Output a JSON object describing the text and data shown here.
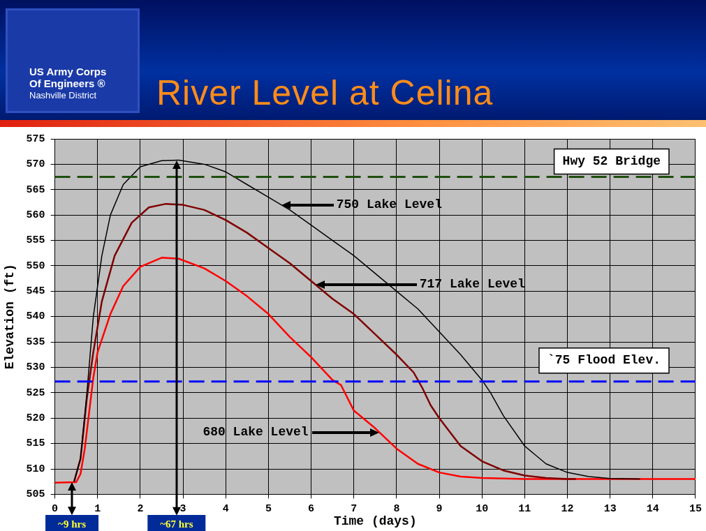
{
  "chart_data": {
    "type": "line",
    "title": "River Level at Celina",
    "xlabel": "Time (days)",
    "ylabel": "Elevation (ft)",
    "xlim": [
      0,
      15
    ],
    "xticks": [
      0,
      1,
      2,
      3,
      4,
      5,
      6,
      7,
      8,
      9,
      10,
      11,
      12,
      13,
      14,
      15
    ],
    "ylim": [
      505,
      575
    ],
    "yticks": [
      505,
      510,
      515,
      520,
      525,
      530,
      535,
      540,
      545,
      550,
      555,
      560,
      565,
      570,
      575
    ],
    "grid": true,
    "legend": false,
    "marker": "none",
    "line_style": "solid",
    "series": [
      {
        "color": "#000000",
        "x": [
          0.45,
          0.6,
          0.75,
          0.9,
          1.1,
          1.3,
          1.6,
          2,
          2.5,
          2.9,
          3.5,
          4,
          4.5,
          5,
          5.5,
          6,
          6.5,
          7,
          7.5,
          8,
          8.5,
          9,
          9.5,
          10,
          10.2,
          10.5,
          11,
          11.5,
          12,
          12.5,
          13,
          13.7
        ],
        "values": [
          507.5,
          512,
          525,
          540,
          552,
          560,
          566,
          569.5,
          570.7,
          570.8,
          570,
          568.5,
          566,
          563.5,
          561,
          558,
          555,
          552,
          548.5,
          545,
          541.5,
          537,
          532.5,
          527.5,
          525,
          520.5,
          514.5,
          511,
          509.3,
          508.5,
          508.1,
          508
        ]
      },
      {
        "color": "#800000",
        "x": [
          0.45,
          0.6,
          0.75,
          0.9,
          1.1,
          1.4,
          1.8,
          2.2,
          2.6,
          3,
          3.5,
          4,
          4.5,
          5,
          5.5,
          6,
          6.5,
          7,
          7.5,
          8,
          8.4,
          8.6,
          8.8,
          9,
          9.5,
          10,
          10.5,
          11,
          11.5,
          12,
          12.2
        ],
        "values": [
          507.5,
          512,
          524,
          533,
          543,
          552,
          558.5,
          561.5,
          562.2,
          562,
          561,
          559,
          556.5,
          553.5,
          550.5,
          547,
          543.5,
          540.5,
          536.5,
          532.5,
          529,
          526,
          522.5,
          520,
          514.5,
          511.5,
          509.7,
          508.7,
          508.2,
          508,
          508
        ]
      },
      {
        "color": "#ff0000",
        "x": [
          0,
          0.5,
          0.6,
          0.7,
          0.8,
          0.9,
          1,
          1.3,
          1.6,
          2,
          2.5,
          2.9,
          3.5,
          4,
          4.5,
          5,
          5.5,
          6,
          6.5,
          6.7,
          7,
          7.5,
          8,
          8.5,
          9,
          9.5,
          10,
          11,
          15
        ],
        "values": [
          507.3,
          507.4,
          509,
          514,
          521,
          528,
          533,
          540.5,
          546,
          549.8,
          551.6,
          551.4,
          549.5,
          547,
          544,
          540.5,
          536,
          532,
          527.5,
          526.5,
          521.5,
          518,
          514,
          511,
          509.3,
          508.5,
          508.2,
          508,
          508
        ]
      }
    ],
    "ref_lines": [
      {
        "axis": "y",
        "value": 567.5,
        "label": "Hwy 52 Bridge",
        "color": "#1f4f0f",
        "line_style": "dashed"
      },
      {
        "axis": "y",
        "value": 527.2,
        "label": "`75 Flood Elev.",
        "color": "#0000ff",
        "line_style": "dashed"
      }
    ],
    "annotations": [
      "750 Lake Level",
      "717 Lake Level",
      "680 Lake Level",
      "~9 hrs",
      "~67 hrs",
      "US Army Corps",
      "Of Engineers ®",
      "Nashville District"
    ]
  }
}
